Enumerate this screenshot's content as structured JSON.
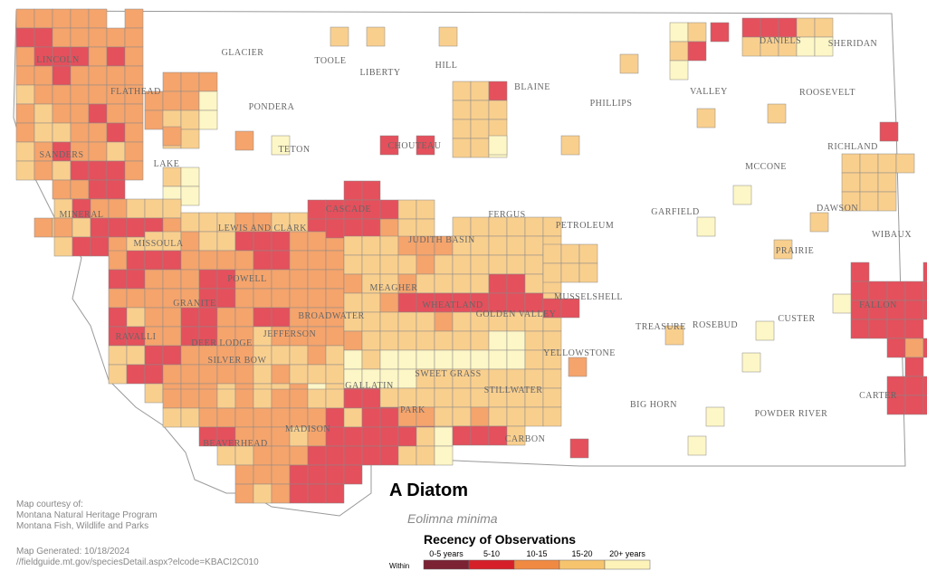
{
  "title": "A Diatom",
  "subtitle": "Eolimna minima",
  "legend": {
    "title": "Recency of Observations",
    "within": "Within",
    "items": [
      "0-5 years",
      "5-10",
      "10-15",
      "15-20",
      "20+ years"
    ]
  },
  "credits": [
    "Map courtesy of:",
    "Montana Natural Heritage Program",
    "Montana Fish, Wildlife and Parks"
  ],
  "generated": [
    "Map Generated: 10/18/2024",
    "//fieldguide.mt.gov/speciesDetail.aspx?elcode=KBACI2C010"
  ],
  "counties": [
    "GLACIER",
    "TOOLE",
    "LIBERTY",
    "HILL",
    "BLAINE",
    "PHILLIPS",
    "VALLEY",
    "DANIELS",
    "SHERIDAN",
    "ROOSEVELT",
    "LINCOLN",
    "FLATHEAD",
    "PONDERA",
    "TETON",
    "CHOUTEAU",
    "SANDERS",
    "LAKE",
    "RICHLAND",
    "MCCONE",
    "CASCADE",
    "FERGUS",
    "GARFIELD",
    "DAWSON",
    "MINERAL",
    "LEWIS AND CLARK",
    "JUDITH BASIN",
    "PETROLEUM",
    "WIBAUX",
    "MISSOULA",
    "PRAIRIE",
    "POWELL",
    "MEAGHER",
    "MUSSELSHELL",
    "GRANITE",
    "WHEATLAND",
    "GOLDEN VALLEY",
    "BROADWATER",
    "FALLON",
    "CUSTER",
    "TREASURE",
    "ROSEBUD",
    "RAVALLI",
    "DEER LODGE",
    "JEFFERSON",
    "YELLOWSTONE",
    "SILVER BOW",
    "SWEET GRASS",
    "STILLWATER",
    "GALLATIN",
    "BIG HORN",
    "CARTER",
    "POWDER RIVER",
    "PARK",
    "MADISON",
    "CARBON",
    "BEAVERHEAD"
  ]
}
